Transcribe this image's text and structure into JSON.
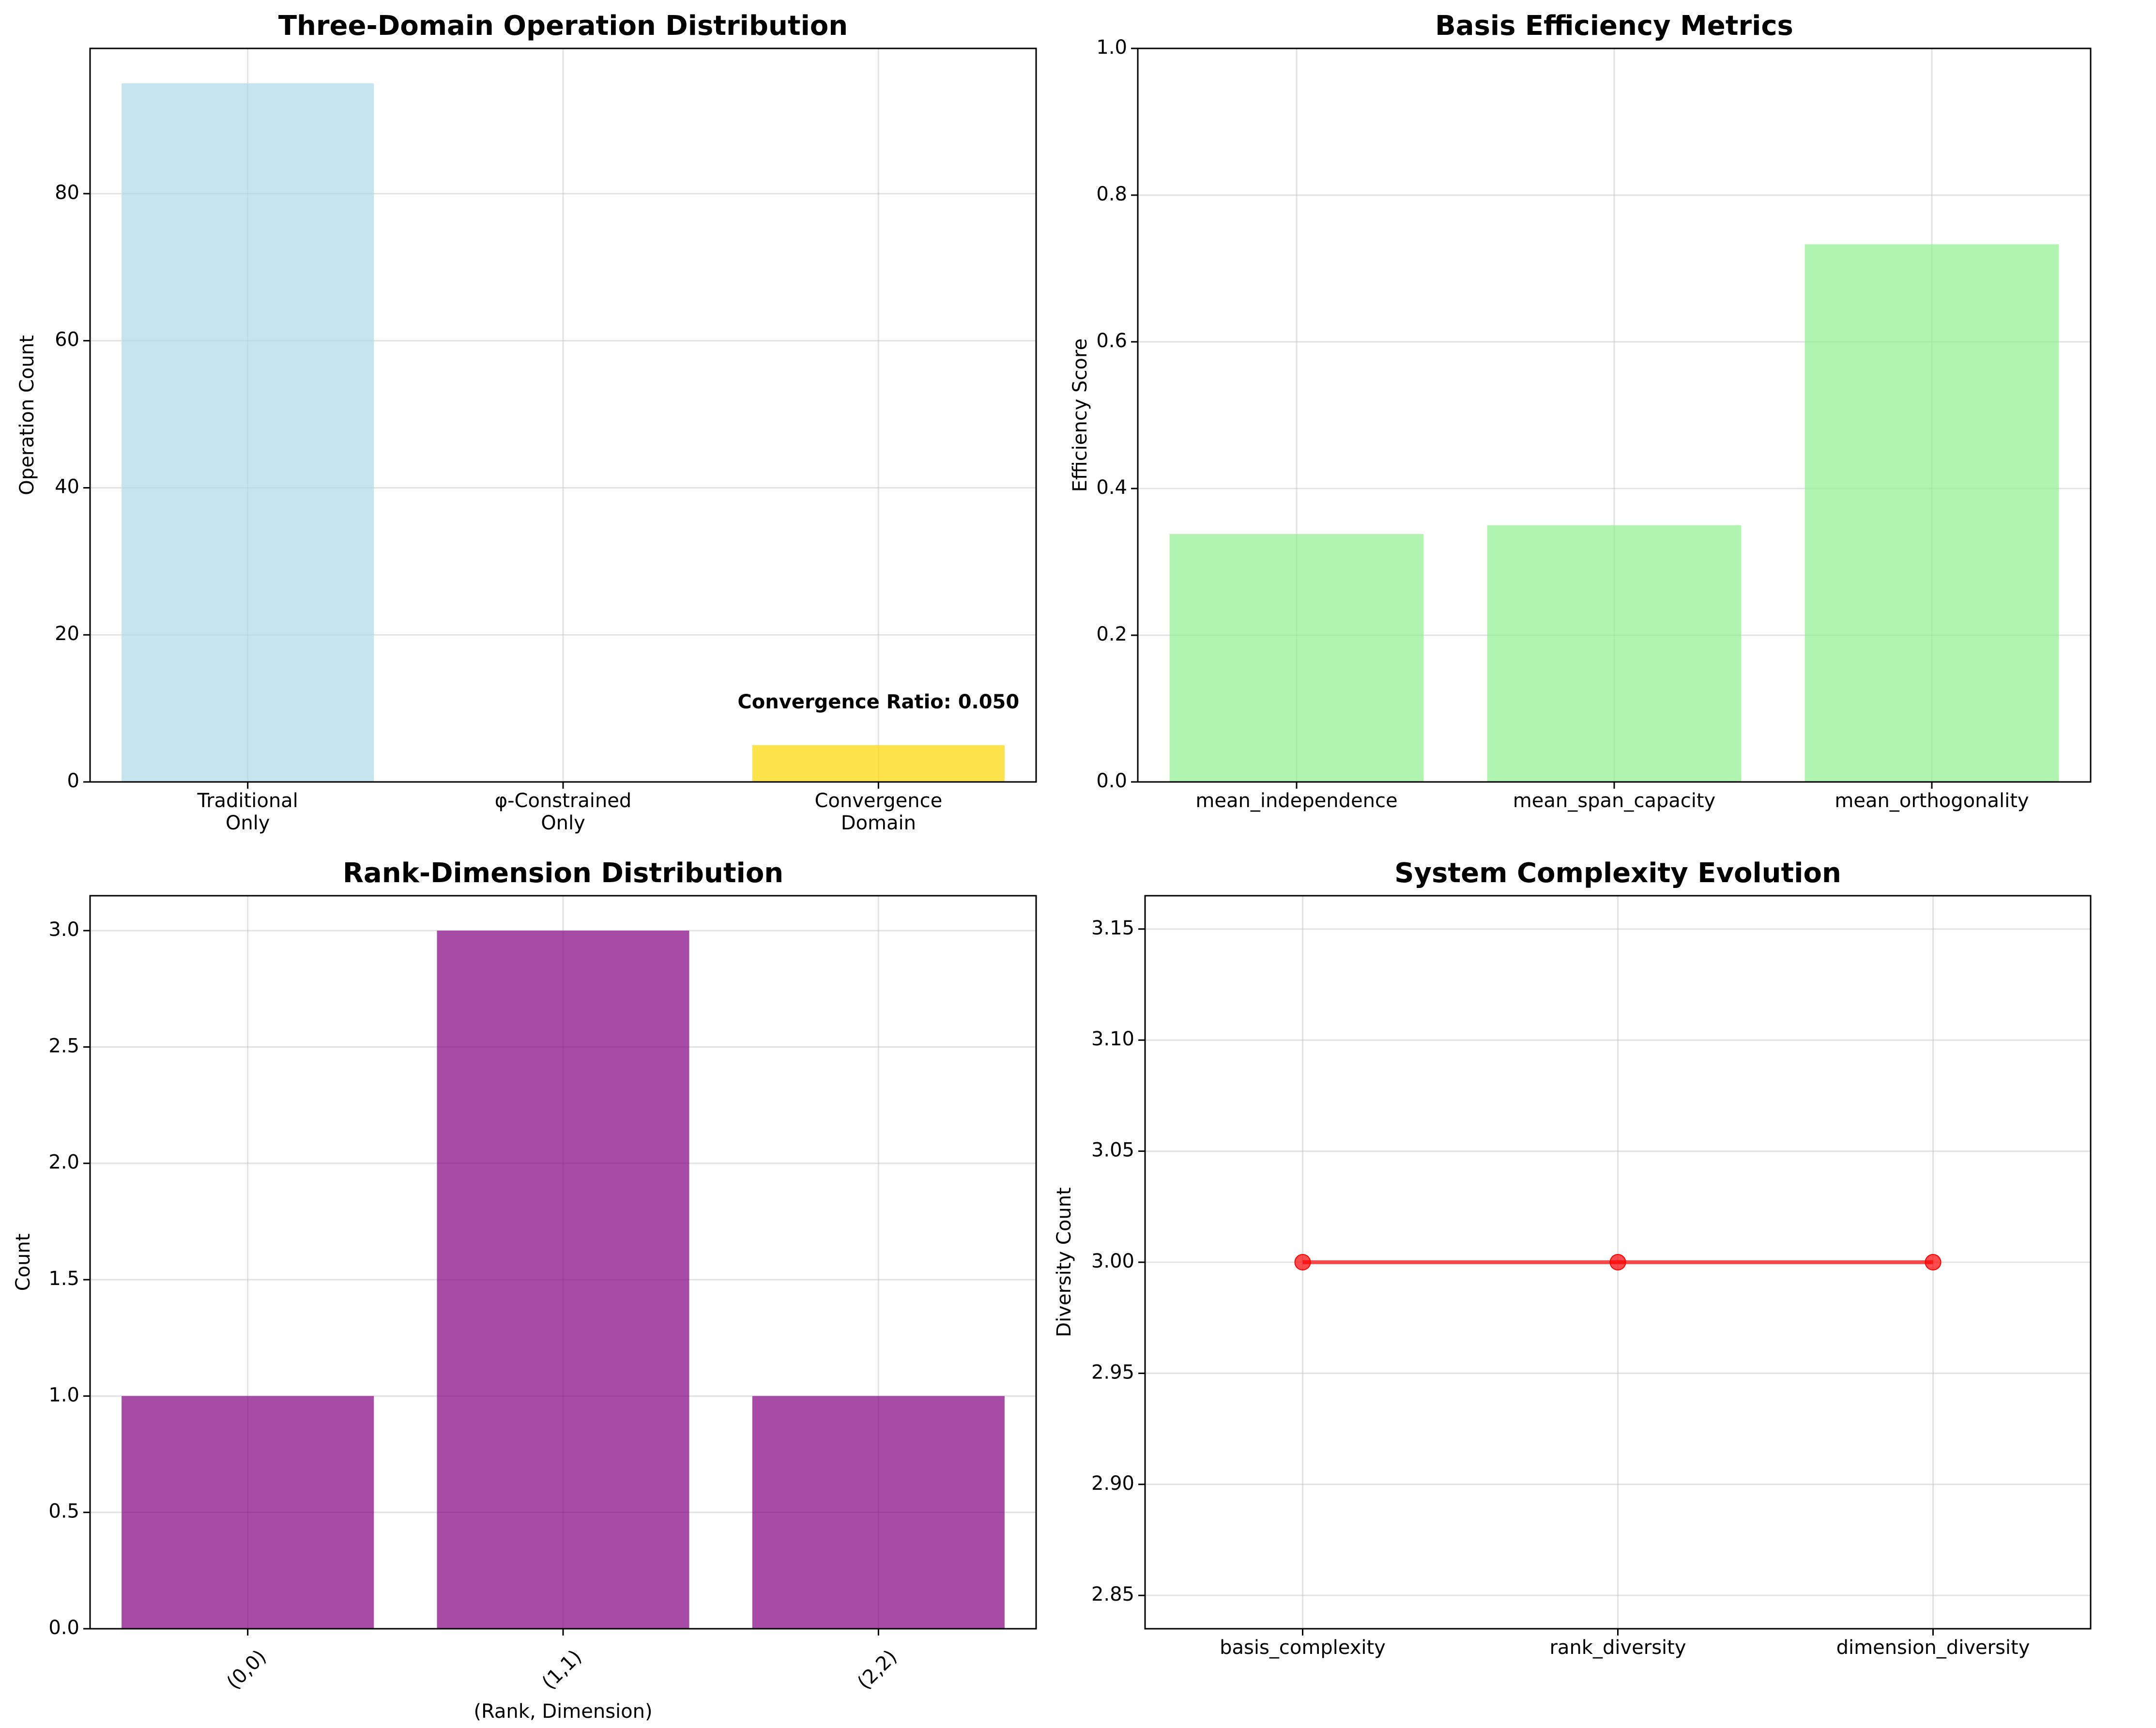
{
  "colors": {
    "traditional": "#add8e6",
    "phi_constrained": "#ffa500",
    "convergence": "#ffd700",
    "efficiency": "#90ee90",
    "rank_dim": "#800080",
    "complexity_line": "#ff0000"
  },
  "chart_data": [
    {
      "id": "domain",
      "type": "bar",
      "title": "Three-Domain Operation Distribution",
      "xlabel": "",
      "ylabel": "Operation Count",
      "categories": [
        "Traditional\nOnly",
        "φ-Constrained\nOnly",
        "Convergence\nDomain"
      ],
      "values": [
        95,
        0,
        5
      ],
      "bar_colors": [
        "#add8e6",
        "#ffa500",
        "#ffd700"
      ],
      "alpha": 0.7,
      "ylim": [
        0,
        99.75
      ],
      "yticks": [
        0,
        20,
        40,
        60,
        80
      ],
      "annotation": {
        "text": "Convergence Ratio: 0.050",
        "x_index": 2,
        "y": 10
      },
      "grid": true
    },
    {
      "id": "efficiency",
      "type": "bar",
      "title": "Basis Efficiency Metrics",
      "xlabel": "",
      "ylabel": "Efficiency Score",
      "categories": [
        "mean_independence",
        "mean_span_capacity",
        "mean_orthogonality"
      ],
      "values": [
        0.338,
        0.35,
        0.733
      ],
      "bar_colors": [
        "#90ee90",
        "#90ee90",
        "#90ee90"
      ],
      "alpha": 0.7,
      "ylim": [
        0,
        1.0
      ],
      "yticks": [
        0.0,
        0.2,
        0.4,
        0.6,
        0.8,
        1.0
      ],
      "ytick_labels": [
        "0.0",
        "0.2",
        "0.4",
        "0.6",
        "0.8",
        "1.0"
      ],
      "grid": true
    },
    {
      "id": "rankdim",
      "type": "bar",
      "title": "Rank-Dimension Distribution",
      "xlabel": "(Rank, Dimension)",
      "ylabel": "Count",
      "categories": [
        "(0,0)",
        "(1,1)",
        "(2,2)"
      ],
      "values": [
        1,
        3,
        1
      ],
      "bar_colors": [
        "#800080",
        "#800080",
        "#800080"
      ],
      "alpha": 0.7,
      "ylim": [
        0,
        3.15
      ],
      "yticks": [
        0.0,
        0.5,
        1.0,
        1.5,
        2.0,
        2.5,
        3.0
      ],
      "ytick_labels": [
        "0.0",
        "0.5",
        "1.0",
        "1.5",
        "2.0",
        "2.5",
        "3.0"
      ],
      "xtick_rotation": 45,
      "grid": true
    },
    {
      "id": "complexity",
      "type": "line",
      "title": "System Complexity Evolution",
      "xlabel": "",
      "ylabel": "Diversity Count",
      "categories": [
        "basis_complexity",
        "rank_diversity",
        "dimension_diversity"
      ],
      "values": [
        3,
        3,
        3
      ],
      "line_color": "#ff0000",
      "alpha": 0.7,
      "ylim": [
        2.835,
        3.165
      ],
      "yticks": [
        2.85,
        2.9,
        2.95,
        3.0,
        3.05,
        3.1,
        3.15
      ],
      "ytick_labels": [
        "2.85",
        "2.90",
        "2.95",
        "3.00",
        "3.05",
        "3.10",
        "3.15"
      ],
      "grid": true
    }
  ]
}
